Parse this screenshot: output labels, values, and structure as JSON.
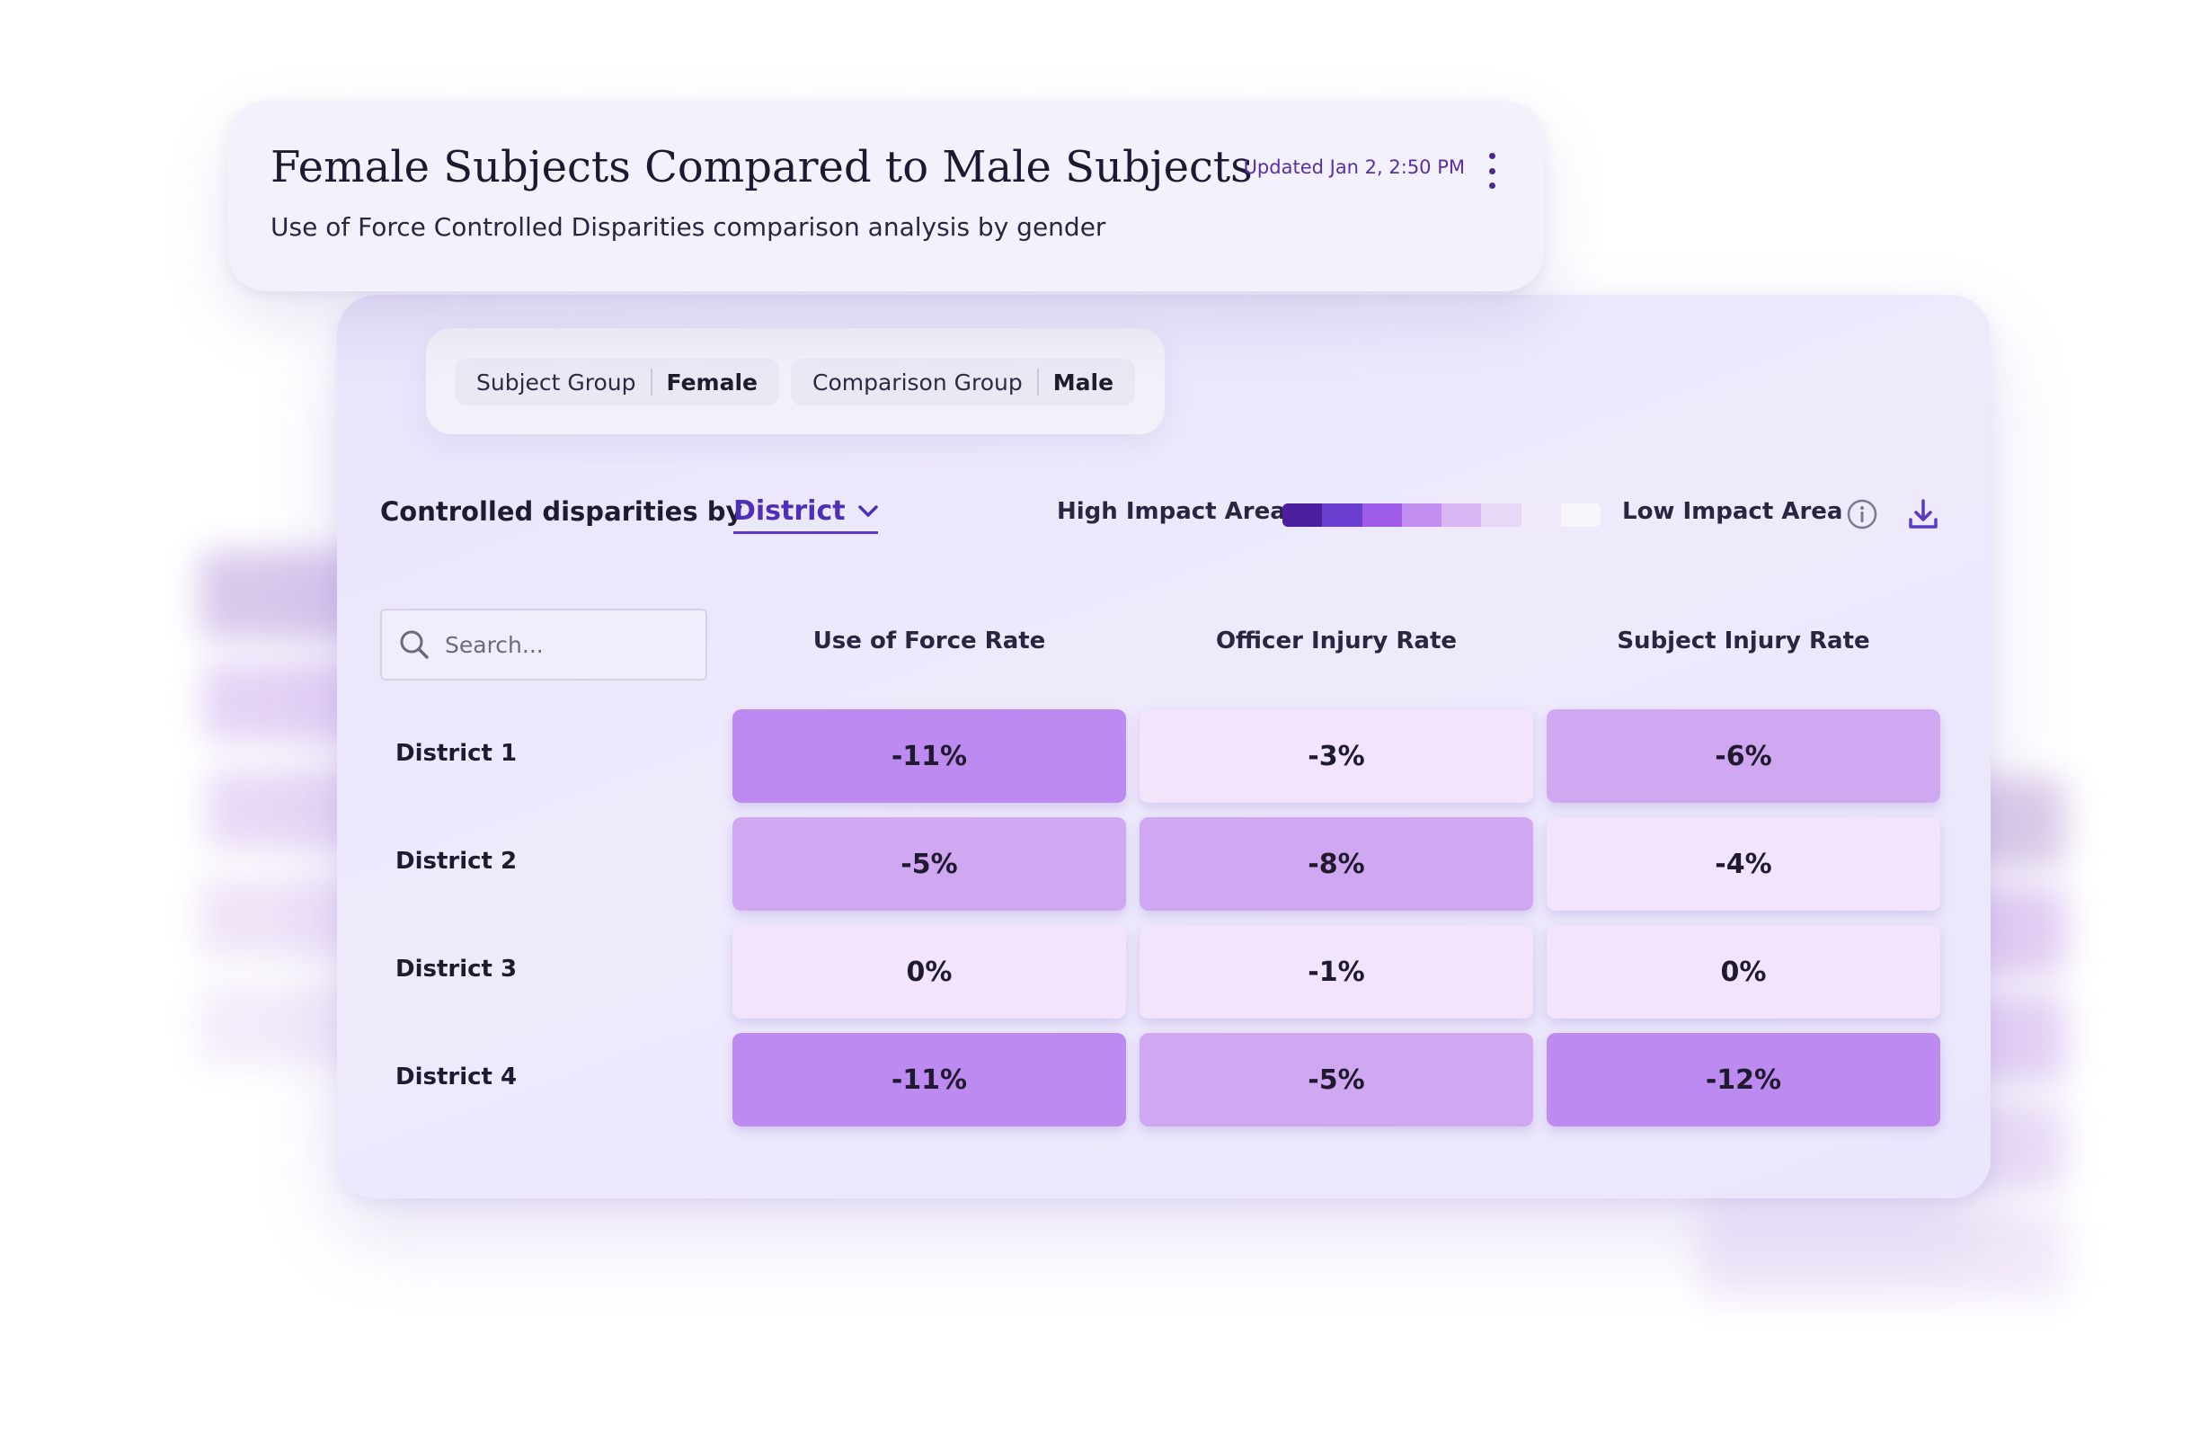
{
  "header": {
    "title": "Female Subjects Compared to Male Subjects",
    "subtitle": "Use of Force Controlled Disparities comparison analysis by gender",
    "updated": "Updated Jan 2, 2:50 PM"
  },
  "filters": {
    "subject_group": {
      "label": "Subject Group",
      "value": "Female"
    },
    "comparison_group": {
      "label": "Comparison Group",
      "value": "Male"
    }
  },
  "controls": {
    "label": "Controlled disparities by",
    "dropdown_value": "District",
    "legend_high": "High Impact Area",
    "legend_low": "Low Impact Area",
    "legend_colors": [
      "#4b1f9e",
      "#6a3fd0",
      "#9e5bea",
      "#c18ef0",
      "#d7b6f3",
      "#e8d8f8",
      "#f2ebfb",
      "#f8f5fd"
    ]
  },
  "search": {
    "placeholder": "Search..."
  },
  "table": {
    "columns": [
      "Use of Force Rate",
      "Officer Injury Rate",
      "Subject Injury Rate"
    ],
    "rows": [
      {
        "label": "District 1",
        "values": [
          "-11%",
          "-3%",
          "-6%"
        ],
        "levels": [
          "strong",
          "light",
          "mid"
        ]
      },
      {
        "label": "District 2",
        "values": [
          "-5%",
          "-8%",
          "-4%"
        ],
        "levels": [
          "mid",
          "mid",
          "light"
        ]
      },
      {
        "label": "District 3",
        "values": [
          "0%",
          "-1%",
          "0%"
        ],
        "levels": [
          "light",
          "light",
          "light"
        ]
      },
      {
        "label": "District 4",
        "values": [
          "-11%",
          "-5%",
          "-12%"
        ],
        "levels": [
          "strong",
          "mid",
          "strong"
        ]
      }
    ]
  },
  "colors": {
    "accent": "#4f2fb8",
    "cell_strong": "#bc8af0",
    "cell_mid": "#d0a8f2",
    "cell_light": "#f1e4fb"
  }
}
